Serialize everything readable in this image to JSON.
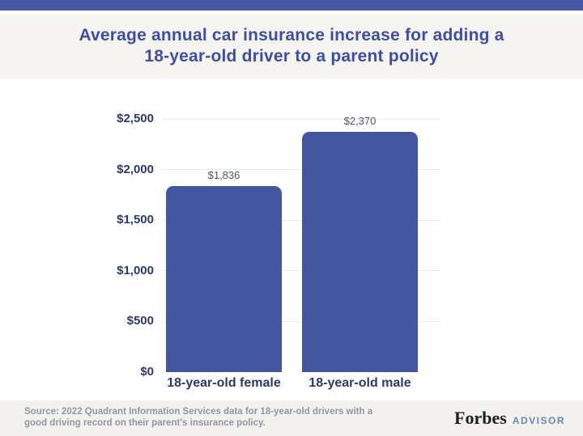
{
  "header": {
    "title_line1": "Average annual car insurance increase for adding a",
    "title_line2": "18-year-old driver to a parent policy"
  },
  "chart_data": {
    "type": "bar",
    "title": "Average annual car insurance increase for adding a 18-year-old driver to a parent policy",
    "categories": [
      "18-year-old female",
      "18-year-old male"
    ],
    "values": [
      1836,
      2370
    ],
    "value_labels": [
      "$1,836",
      "$2,370"
    ],
    "y_ticks": [
      "$0",
      "$500",
      "$1,000",
      "$1,500",
      "$2,000",
      "$2,500"
    ],
    "y_tick_values": [
      0,
      500,
      1000,
      1500,
      2000,
      2500
    ],
    "ylim": [
      0,
      2500
    ],
    "grid": "horizontal-faint",
    "legend": "none",
    "bar_color": "#4556A0"
  },
  "footer": {
    "source_line1": "Source: 2022 Quadrant Information Services data for 18-year-old drivers with a",
    "source_line2": "good driving record on their parent's insurance policy.",
    "brand": {
      "forbes": "Forbes",
      "advisor": "ADVISOR"
    }
  },
  "colors": {
    "top_bar": "#4757A6",
    "header_bg": "#F5F4F1",
    "title_text": "#3E4EA3",
    "bar_fill": "#4556A0",
    "axis_text": "#2E3A66",
    "value_label_text": "#4D5566",
    "gridline": "#ECECEC",
    "footer_bg": "#F2F1EE",
    "source_text": "#8F97A5",
    "advisor_text": "#7083B8"
  }
}
